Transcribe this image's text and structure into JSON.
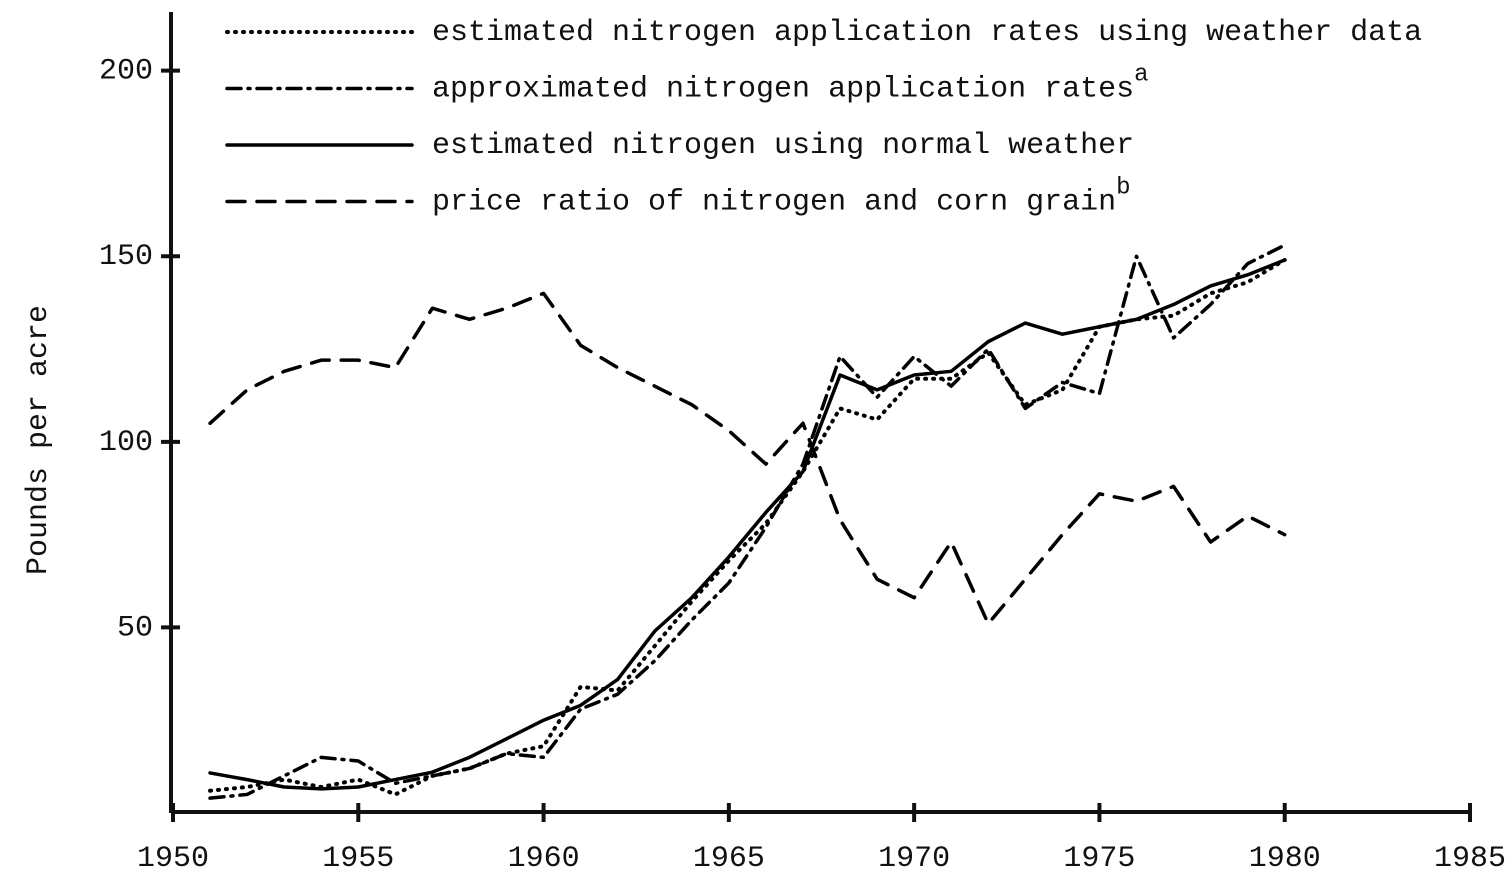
{
  "chart_data": {
    "type": "line",
    "y_label": "Pounds per acre",
    "x": [
      1951,
      1952,
      1953,
      1954,
      1955,
      1956,
      1957,
      1958,
      1959,
      1960,
      1961,
      1962,
      1963,
      1964,
      1965,
      1966,
      1967,
      1968,
      1969,
      1970,
      1971,
      1972,
      1973,
      1974,
      1975,
      1976,
      1977,
      1978,
      1979,
      1980
    ],
    "series": [
      {
        "name": "estimated nitrogen application rates using weather data",
        "color": "#000000",
        "dash": "dotted",
        "values": [
          6,
          7,
          9,
          7,
          9,
          5,
          10,
          12,
          16,
          18,
          34,
          33,
          45,
          57,
          68,
          78,
          92,
          109,
          106,
          117,
          117,
          124,
          110,
          114,
          131,
          133,
          134,
          140,
          143,
          149
        ]
      },
      {
        "name": "approximated nitrogen application rates",
        "footnote_mark": "a",
        "color": "#000000",
        "dash": "dashdot",
        "values": [
          4,
          5,
          10,
          15,
          14,
          8,
          10,
          12,
          16,
          15,
          28,
          32,
          41,
          52,
          62,
          77,
          94,
          123,
          112,
          123,
          115,
          125,
          109,
          116,
          113,
          150,
          128,
          137,
          148,
          153
        ]
      },
      {
        "name": "estimated nitrogen using normal weather",
        "color": "#000000",
        "dash": "solid",
        "values": [
          10.8,
          9,
          7,
          6.5,
          7,
          9,
          11,
          15,
          20,
          25,
          29,
          36,
          49,
          58,
          69,
          81,
          92,
          118,
          114,
          118,
          119,
          127,
          132,
          129,
          131,
          133,
          137,
          142,
          145,
          149
        ]
      },
      {
        "name": "price ratio of nitrogen and corn grain",
        "footnote_mark": "b",
        "color": "#000000",
        "dash": "dashed",
        "values": [
          105,
          114,
          119,
          122,
          122,
          120,
          136,
          133,
          136,
          140,
          126,
          120,
          115,
          110,
          103,
          94,
          105,
          79,
          63,
          58,
          73,
          51,
          63,
          75,
          86,
          84,
          88,
          73,
          80,
          75
        ]
      }
    ],
    "xlim": [
      1950,
      1985
    ],
    "xticks": [
      1950,
      1955,
      1960,
      1965,
      1970,
      1975,
      1980,
      1985
    ],
    "ylim": [
      0,
      215
    ],
    "yticks": [
      50,
      100,
      150,
      200
    ],
    "legend": "top"
  }
}
